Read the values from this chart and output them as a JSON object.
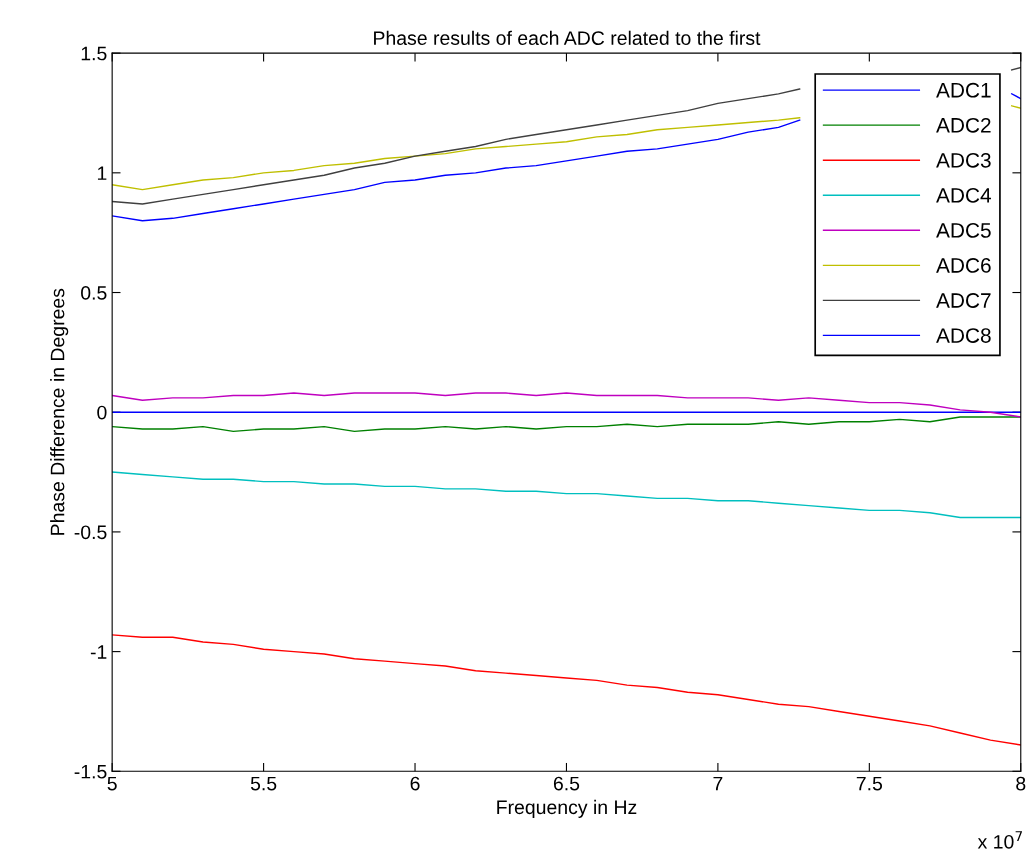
{
  "chart_data": {
    "type": "line",
    "title": "Phase results of each ADC related to the first",
    "xlabel": "Frequency in Hz",
    "ylabel": "Phase Difference in Degrees",
    "annotations": [
      "x 10$^{7}$"
    ],
    "x": [
      5.0,
      5.1,
      5.2,
      5.3,
      5.4,
      5.5,
      5.6,
      5.7,
      5.8,
      5.9,
      6.0,
      6.1,
      6.2,
      6.3,
      6.4,
      6.5,
      6.6,
      6.7,
      6.8,
      6.9,
      7.0,
      7.1,
      7.2,
      7.3,
      7.4,
      7.5,
      7.6,
      7.7,
      7.8,
      7.9,
      8.0
    ],
    "series": [
      {
        "name": "ADC1",
        "color": "#0000ff",
        "values": [
          0,
          0,
          0,
          0,
          0,
          0,
          0,
          0,
          0,
          0,
          0,
          0,
          0,
          0,
          0,
          0,
          0,
          0,
          0,
          0,
          0,
          0,
          0,
          0,
          0,
          0,
          0,
          0,
          0,
          0,
          0
        ]
      },
      {
        "name": "ADC2",
        "color": "#008000",
        "values": [
          -0.06,
          -0.07,
          -0.07,
          -0.06,
          -0.08,
          -0.07,
          -0.07,
          -0.06,
          -0.08,
          -0.07,
          -0.07,
          -0.06,
          -0.07,
          -0.06,
          -0.07,
          -0.06,
          -0.06,
          -0.05,
          -0.06,
          -0.05,
          -0.05,
          -0.05,
          -0.04,
          -0.05,
          -0.04,
          -0.04,
          -0.03,
          -0.04,
          -0.02,
          -0.02,
          -0.02
        ]
      },
      {
        "name": "ADC3",
        "color": "#ff0000",
        "values": [
          -0.93,
          -0.94,
          -0.94,
          -0.96,
          -0.97,
          -0.99,
          -1.0,
          -1.01,
          -1.03,
          -1.04,
          -1.05,
          -1.06,
          -1.08,
          -1.09,
          -1.1,
          -1.11,
          -1.12,
          -1.14,
          -1.15,
          -1.17,
          -1.18,
          -1.2,
          -1.22,
          -1.23,
          -1.25,
          -1.27,
          -1.29,
          -1.31,
          -1.34,
          -1.37,
          -1.39
        ]
      },
      {
        "name": "ADC4",
        "color": "#00bfbf",
        "values": [
          -0.25,
          -0.26,
          -0.27,
          -0.28,
          -0.28,
          -0.29,
          -0.29,
          -0.3,
          -0.3,
          -0.31,
          -0.31,
          -0.32,
          -0.32,
          -0.33,
          -0.33,
          -0.34,
          -0.34,
          -0.35,
          -0.36,
          -0.36,
          -0.37,
          -0.37,
          -0.38,
          -0.39,
          -0.4,
          -0.41,
          -0.41,
          -0.42,
          -0.44,
          -0.44,
          -0.44
        ]
      },
      {
        "name": "ADC5",
        "color": "#bf00bf",
        "values": [
          0.07,
          0.05,
          0.06,
          0.06,
          0.07,
          0.07,
          0.08,
          0.07,
          0.08,
          0.08,
          0.08,
          0.07,
          0.08,
          0.08,
          0.07,
          0.08,
          0.07,
          0.07,
          0.07,
          0.06,
          0.06,
          0.06,
          0.05,
          0.06,
          0.05,
          0.04,
          0.04,
          0.03,
          0.01,
          0.0,
          -0.02
        ]
      },
      {
        "name": "ADC6",
        "color": "#bfbf00",
        "x": [
          5.0,
          5.1,
          5.2,
          5.3,
          5.4,
          5.5,
          5.6,
          5.7,
          5.8,
          5.9,
          6.0,
          6.1,
          6.2,
          6.3,
          6.4,
          6.5,
          6.6,
          6.7,
          6.8,
          6.9,
          7.0,
          7.1,
          7.2,
          7.27,
          null,
          7.97,
          8.0
        ],
        "values": [
          0.95,
          0.93,
          0.95,
          0.97,
          0.98,
          1.0,
          1.01,
          1.03,
          1.04,
          1.06,
          1.07,
          1.08,
          1.1,
          1.11,
          1.12,
          1.13,
          1.15,
          1.16,
          1.18,
          1.19,
          1.2,
          1.21,
          1.22,
          1.23,
          null,
          1.28,
          1.27
        ]
      },
      {
        "name": "ADC7",
        "color": "#404040",
        "x": [
          5.0,
          5.1,
          5.2,
          5.3,
          5.4,
          5.5,
          5.6,
          5.7,
          5.8,
          5.9,
          6.0,
          6.1,
          6.2,
          6.3,
          6.4,
          6.5,
          6.6,
          6.7,
          6.8,
          6.9,
          7.0,
          7.1,
          7.2,
          7.27,
          null,
          7.97,
          8.0
        ],
        "values": [
          0.88,
          0.87,
          0.89,
          0.91,
          0.93,
          0.95,
          0.97,
          0.99,
          1.02,
          1.04,
          1.07,
          1.09,
          1.11,
          1.14,
          1.16,
          1.18,
          1.2,
          1.22,
          1.24,
          1.26,
          1.29,
          1.31,
          1.33,
          1.35,
          null,
          1.43,
          1.44
        ]
      },
      {
        "name": "ADC8",
        "color": "#0000ff",
        "x": [
          5.0,
          5.1,
          5.2,
          5.3,
          5.4,
          5.5,
          5.6,
          5.7,
          5.8,
          5.9,
          6.0,
          6.1,
          6.2,
          6.3,
          6.4,
          6.5,
          6.6,
          6.7,
          6.8,
          6.9,
          7.0,
          7.1,
          7.2,
          7.27,
          null,
          7.97,
          8.0
        ],
        "values": [
          0.82,
          0.8,
          0.81,
          0.83,
          0.85,
          0.87,
          0.89,
          0.91,
          0.93,
          0.96,
          0.97,
          0.99,
          1.0,
          1.02,
          1.03,
          1.05,
          1.07,
          1.09,
          1.1,
          1.12,
          1.14,
          1.17,
          1.19,
          1.22,
          null,
          1.33,
          1.31
        ]
      }
    ],
    "xlim": [
      5,
      8
    ],
    "xticks": [
      5,
      5.5,
      6,
      6.5,
      7,
      7.5,
      8
    ],
    "ylim": [
      -1.5,
      1.5
    ],
    "yticks": [
      -1.5,
      -1,
      -0.5,
      0,
      0.5,
      1,
      1.5
    ],
    "legend": "top right",
    "grid": false,
    "marker": "none",
    "line_style": "solid"
  }
}
